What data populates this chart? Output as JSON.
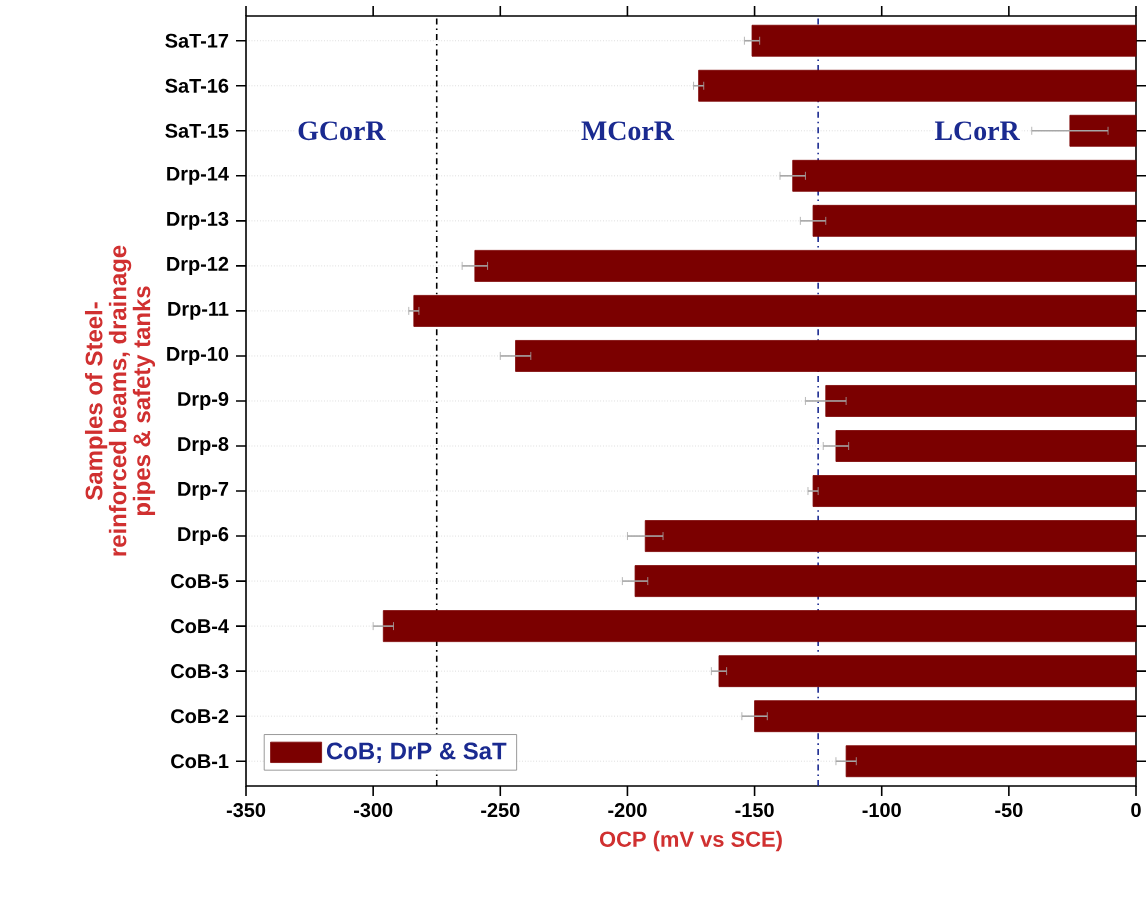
{
  "chart_data": {
    "type": "bar",
    "orientation": "horizontal",
    "xlabel": "OCP (mV vs SCE)",
    "ylabel": "Samples of Steel-reinforced beams, drainage pipes & safety tanks",
    "categories": [
      "SaT-17",
      "SaT-16",
      "SaT-15",
      "Drp-14",
      "Drp-13",
      "Drp-12",
      "Drp-11",
      "Drp-10",
      "Drp-9",
      "Drp-8",
      "Drp-7",
      "Drp-6",
      "CoB-5",
      "CoB-4",
      "CoB-3",
      "CoB-2",
      "CoB-1"
    ],
    "series": [
      {
        "name": "CoB; DrP & SaT",
        "color": "#7b0000",
        "values": [
          -151,
          -172,
          -26,
          -135,
          -127,
          -260,
          -284,
          -244,
          -122,
          -118,
          -127,
          -193,
          -197,
          -296,
          -164,
          -150,
          -114
        ],
        "errors": [
          3,
          2,
          15,
          5,
          5,
          5,
          2,
          6,
          8,
          5,
          2,
          7,
          5,
          4,
          3,
          5,
          4
        ]
      }
    ],
    "xlim": [
      -350,
      0
    ],
    "xticks": [
      -350,
      -300,
      -250,
      -200,
      -150,
      -100,
      -50,
      0
    ],
    "ref_lines": [
      {
        "axis": "x",
        "value": -275,
        "color": "#000000",
        "line_style": "dashdot"
      },
      {
        "axis": "x",
        "value": -125,
        "color": "#1a2a90",
        "line_style": "dashdot"
      }
    ],
    "annotations": [
      "GCorR",
      "MCorR",
      "LCorR"
    ],
    "grid": "y",
    "legend": "bottom left"
  }
}
